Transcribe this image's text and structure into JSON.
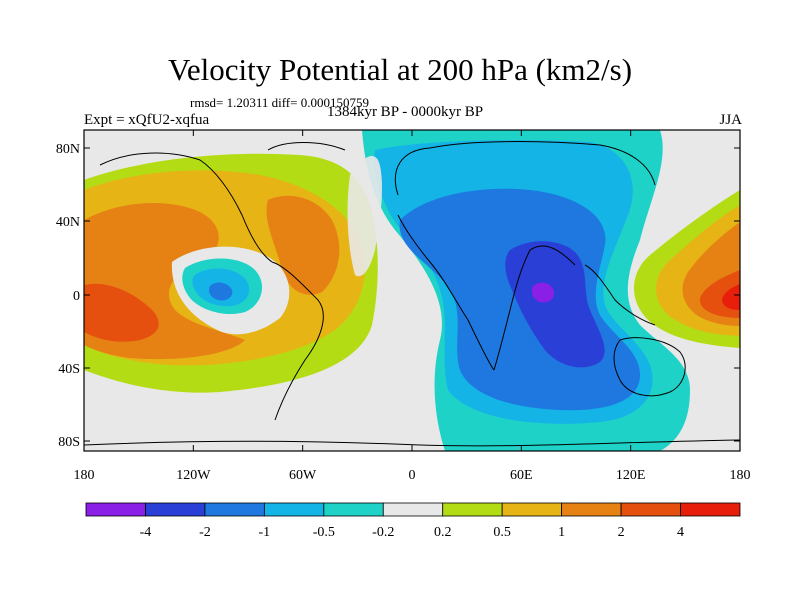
{
  "title": "Velocity Potential at 200 hPa (km2/s)",
  "stats": "rmsd= 1.20311 diff= 0.000150759",
  "experiment": "Expt = xQfU2-xqfua",
  "period": "1384kyr BP - 0000kyr BP",
  "season": "JJA",
  "axes": {
    "x_ticks": [
      "180",
      "120W",
      "60W",
      "0",
      "60E",
      "120E",
      "180"
    ],
    "y_ticks": [
      "80N",
      "40N",
      "0",
      "40S",
      "80S"
    ]
  },
  "colorbar": {
    "labels": [
      "-4",
      "-2",
      "-1",
      "-0.5",
      "-0.2",
      "0.2",
      "0.5",
      "1",
      "2",
      "4"
    ],
    "colors": [
      "#8a1fe6",
      "#2a3fd6",
      "#1e78e0",
      "#14b4e6",
      "#1ed2c8",
      "#e8e8e8",
      "#b4dc14",
      "#e6b414",
      "#e68214",
      "#e6500f",
      "#e61e0a"
    ]
  }
}
